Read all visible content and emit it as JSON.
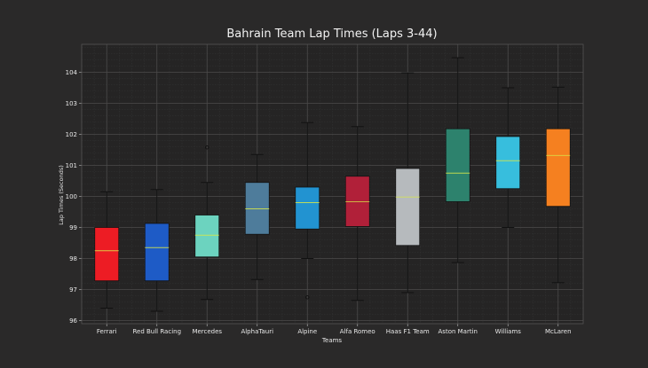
{
  "chart_data": {
    "type": "box",
    "title": "Bahrain Team Lap Times (Laps 3-44)",
    "xlabel": "Teams",
    "ylabel": "Lap Times (Seconds)",
    "ylim": [
      95.9,
      104.9
    ],
    "yticks": [
      96,
      97,
      98,
      99,
      100,
      101,
      102,
      103,
      104
    ],
    "grid": true,
    "categories": [
      "Ferrari",
      "Red Bull Racing",
      "Mercedes",
      "AlphaTauri",
      "Alpine",
      "Alfa Romeo",
      "Haas F1 Team",
      "Aston Martin",
      "Williams",
      "McLaren"
    ],
    "series": [
      {
        "name": "Ferrari",
        "color": "#ed1c24",
        "whisker_low": 96.4,
        "q1": 97.28,
        "median": 98.25,
        "q3": 99.0,
        "whisker_high": 100.15,
        "outliers": []
      },
      {
        "name": "Red Bull Racing",
        "color": "#1e5bc6",
        "whisker_low": 96.3,
        "q1": 97.28,
        "median": 98.35,
        "q3": 99.13,
        "whisker_high": 100.22,
        "outliers": []
      },
      {
        "name": "Mercedes",
        "color": "#6cd3bf",
        "whisker_low": 96.68,
        "q1": 98.05,
        "median": 98.75,
        "q3": 99.4,
        "whisker_high": 100.45,
        "outliers": [
          101.58
        ]
      },
      {
        "name": "AlphaTauri",
        "color": "#4e7c9b",
        "whisker_low": 97.32,
        "q1": 98.78,
        "median": 99.6,
        "q3": 100.45,
        "whisker_high": 101.35,
        "outliers": []
      },
      {
        "name": "Alpine",
        "color": "#2293d1",
        "whisker_low": 98.0,
        "q1": 98.95,
        "median": 99.8,
        "q3": 100.3,
        "whisker_high": 102.38,
        "outliers": [
          96.75
        ]
      },
      {
        "name": "Alfa Romeo",
        "color": "#b12039",
        "whisker_low": 96.65,
        "q1": 99.03,
        "median": 99.83,
        "q3": 100.65,
        "whisker_high": 102.25,
        "outliers": []
      },
      {
        "name": "Haas F1 Team",
        "color": "#b6babd",
        "whisker_low": 96.9,
        "q1": 98.42,
        "median": 99.98,
        "q3": 100.9,
        "whisker_high": 103.98,
        "outliers": []
      },
      {
        "name": "Aston Martin",
        "color": "#2d826d",
        "whisker_low": 97.87,
        "q1": 99.83,
        "median": 100.75,
        "q3": 102.18,
        "whisker_high": 104.47,
        "outliers": []
      },
      {
        "name": "Williams",
        "color": "#37bedd",
        "whisker_low": 99.0,
        "q1": 100.25,
        "median": 101.15,
        "q3": 101.93,
        "whisker_high": 103.5,
        "outliers": []
      },
      {
        "name": "McLaren",
        "color": "#f58020",
        "whisker_low": 97.22,
        "q1": 99.68,
        "median": 101.32,
        "q3": 102.18,
        "whisker_high": 103.52,
        "outliers": []
      }
    ]
  }
}
